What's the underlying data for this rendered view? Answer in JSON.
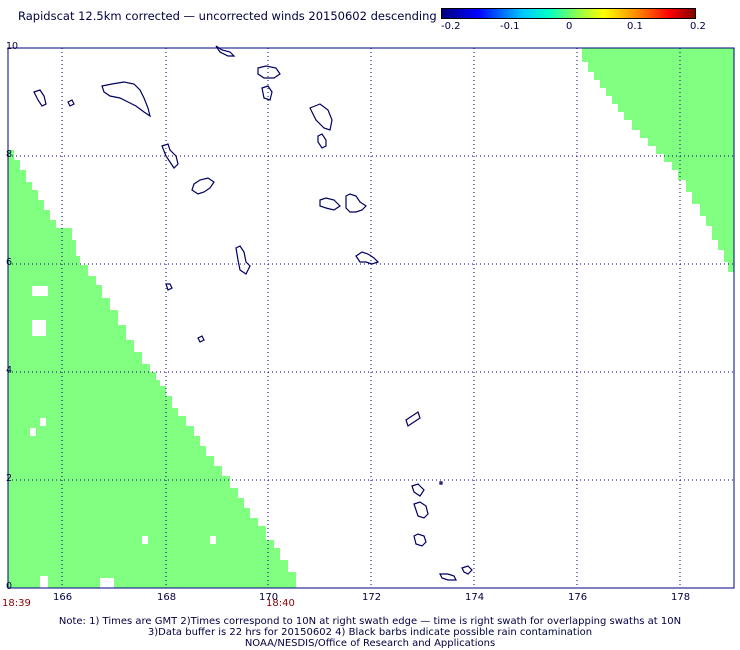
{
  "title": "Rapidscat 12.5km corrected — uncorrected winds 20150602 descending",
  "colorbar": {
    "tick_labels": [
      "-0.2",
      "-0.1",
      "0",
      "0.1",
      "0.2"
    ],
    "colors": [
      "#000080",
      "#0000ff",
      "#00c8ff",
      "#00ffc8",
      "#a0ff40",
      "#ffff00",
      "#ff8000",
      "#ff0000",
      "#800000"
    ]
  },
  "axes": {
    "x_ticks": [
      "166",
      "168",
      "170",
      "172",
      "174",
      "176",
      "178"
    ],
    "y_ticks": [
      "0",
      "2",
      "4",
      "6",
      "8",
      "10"
    ]
  },
  "time_labels": [
    "18:39",
    "18:40"
  ],
  "notes": [
    "Note: 1) Times are GMT 2)Times correspond to 10N at right swath edge — time is right swath for overlapping swaths at 10N",
    "3)Data buffer is 22 hrs for 20150602 4) Black barbs indicate possible rain contamination",
    "NOAA/NESDIS/Office of Research and Applications"
  ],
  "style": {
    "swath_color": "#80ff80",
    "coast_color": "#000060",
    "grid_color": "#000080"
  }
}
